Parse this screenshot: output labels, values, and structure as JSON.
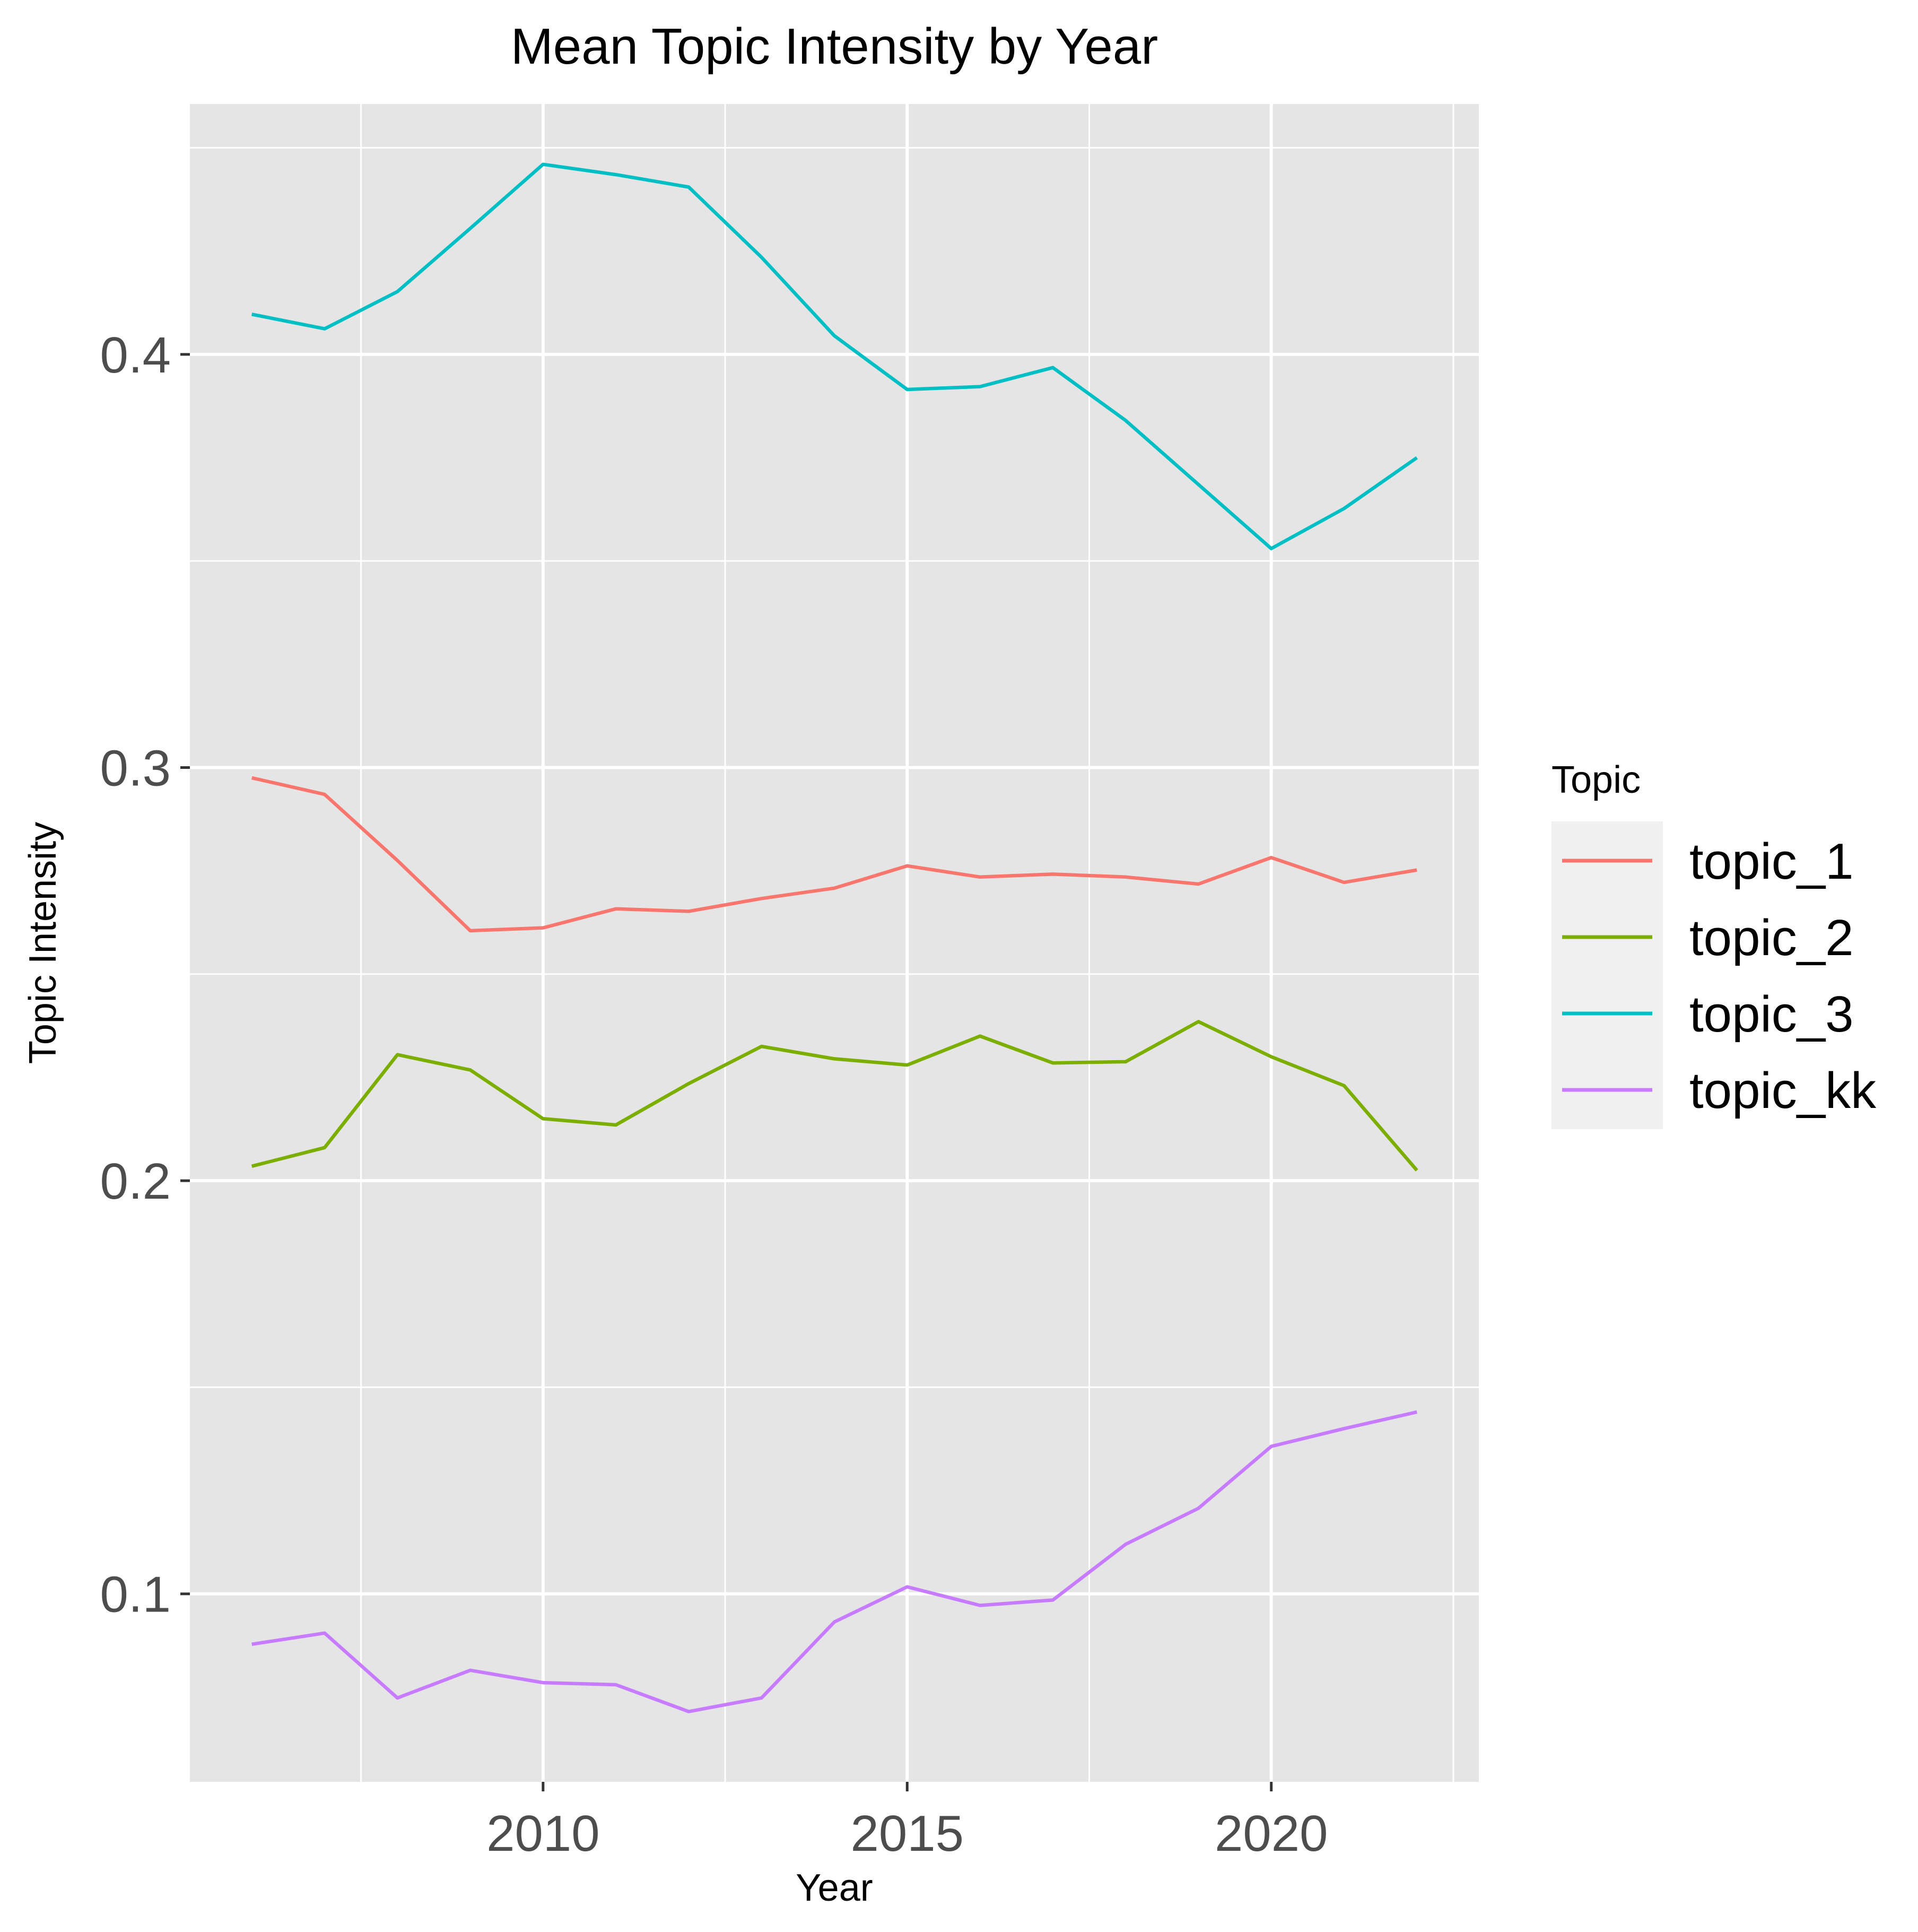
{
  "chart_data": {
    "type": "line",
    "title": "Mean Topic Intensity by Year",
    "xlabel": "Year",
    "ylabel": "Topic Intensity",
    "x": [
      2006,
      2007,
      2008,
      2009,
      2010,
      2011,
      2012,
      2013,
      2014,
      2015,
      2016,
      2017,
      2018,
      2019,
      2020,
      2021,
      2022
    ],
    "xlim": [
      2005.15,
      2022.85
    ],
    "ylim": [
      0.0545,
      0.4606
    ],
    "x_ticks": [
      2010,
      2015,
      2020
    ],
    "x_tick_labels": [
      "2010",
      "2015",
      "2020"
    ],
    "y_ticks": [
      0.1,
      0.2,
      0.3,
      0.4
    ],
    "y_tick_labels": [
      "0.1",
      "0.2",
      "0.3",
      "0.4"
    ],
    "grid": true,
    "legend": {
      "title": "Topic",
      "position": "right"
    },
    "series": [
      {
        "name": "topic_1",
        "color": "#F8766D",
        "values": [
          0.2975,
          0.2935,
          0.2775,
          0.2605,
          0.2612,
          0.2658,
          0.2652,
          0.2683,
          0.2708,
          0.2762,
          0.2735,
          0.2742,
          0.2735,
          0.2718,
          0.2782,
          0.2722,
          0.2752
        ]
      },
      {
        "name": "topic_2",
        "color": "#7CAE00",
        "values": [
          0.2035,
          0.208,
          0.2305,
          0.2268,
          0.215,
          0.2135,
          0.2235,
          0.2325,
          0.2295,
          0.228,
          0.235,
          0.2285,
          0.2288,
          0.2385,
          0.23,
          0.223,
          0.2025
        ]
      },
      {
        "name": "topic_3",
        "color": "#00BFC4",
        "values": [
          0.4097,
          0.4062,
          0.4152,
          0.4305,
          0.446,
          0.4435,
          0.4405,
          0.4235,
          0.4045,
          0.3915,
          0.3922,
          0.3968,
          0.384,
          0.3685,
          0.353,
          0.3627,
          0.375
        ]
      },
      {
        "name": "topic_kk",
        "color": "#C77CFF",
        "values": [
          0.0878,
          0.0905,
          0.0748,
          0.0815,
          0.0785,
          0.078,
          0.0715,
          0.0748,
          0.0932,
          0.1017,
          0.0972,
          0.0985,
          0.112,
          0.1207,
          0.1357,
          0.14,
          0.144
        ]
      }
    ]
  }
}
